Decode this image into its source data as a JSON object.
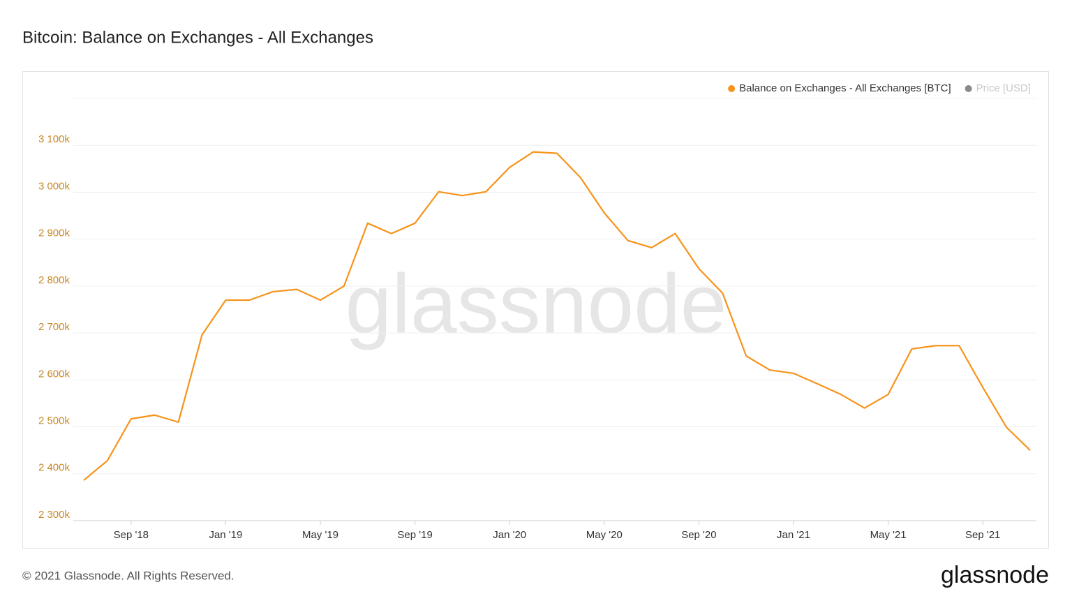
{
  "chart_data": {
    "type": "line",
    "title": "Bitcoin: Balance on Exchanges - All Exchanges",
    "watermark": "glassnode",
    "footer": "© 2021 Glassnode. All Rights Reserved.",
    "brand": "glassnode",
    "x": [
      "2018-07",
      "2018-08",
      "2018-09",
      "2018-10",
      "2018-11",
      "2018-12",
      "2019-01",
      "2019-02",
      "2019-03",
      "2019-04",
      "2019-05",
      "2019-06",
      "2019-07",
      "2019-08",
      "2019-09",
      "2019-10",
      "2019-11",
      "2019-12",
      "2020-01",
      "2020-02",
      "2020-03",
      "2020-04",
      "2020-05",
      "2020-06",
      "2020-07",
      "2020-08",
      "2020-09",
      "2020-10",
      "2020-11",
      "2020-12",
      "2021-01",
      "2021-02",
      "2021-03",
      "2021-04",
      "2021-05",
      "2021-06",
      "2021-07",
      "2021-08",
      "2021-09",
      "2021-10",
      "2021-11"
    ],
    "xlim": [
      "2018-07",
      "2021-11"
    ],
    "xticks": [
      {
        "value": "2018-09",
        "label": "Sep '18"
      },
      {
        "value": "2019-01",
        "label": "Jan '19"
      },
      {
        "value": "2019-05",
        "label": "May '19"
      },
      {
        "value": "2019-09",
        "label": "Sep '19"
      },
      {
        "value": "2020-01",
        "label": "Jan '20"
      },
      {
        "value": "2020-05",
        "label": "May '20"
      },
      {
        "value": "2020-09",
        "label": "Sep '20"
      },
      {
        "value": "2021-01",
        "label": "Jan '21"
      },
      {
        "value": "2021-05",
        "label": "May '21"
      },
      {
        "value": "2021-09",
        "label": "Sep '21"
      }
    ],
    "ylim": [
      2300000,
      3200000
    ],
    "yticks": [
      {
        "value": 2300000,
        "label": "2 300k"
      },
      {
        "value": 2400000,
        "label": "2 400k"
      },
      {
        "value": 2500000,
        "label": "2 500k"
      },
      {
        "value": 2600000,
        "label": "2 600k"
      },
      {
        "value": 2700000,
        "label": "2 700k"
      },
      {
        "value": 2800000,
        "label": "2 800k"
      },
      {
        "value": 2900000,
        "label": "2 900k"
      },
      {
        "value": 3000000,
        "label": "3 000k"
      },
      {
        "value": 3100000,
        "label": "3 100k"
      }
    ],
    "grid": true,
    "series": [
      {
        "name": "Balance on Exchanges - All Exchanges [BTC]",
        "color": "#f7931a",
        "values": [
          2386000,
          2428000,
          2517000,
          2525000,
          2510000,
          2696000,
          2770000,
          2770000,
          2788000,
          2793000,
          2770000,
          2800000,
          2934000,
          2912000,
          2934000,
          3001000,
          2993000,
          3001000,
          3053000,
          3086000,
          3083000,
          3031000,
          2956000,
          2897000,
          2882000,
          2912000,
          2837000,
          2785000,
          2651000,
          2621000,
          2614000,
          2592000,
          2569000,
          2540000,
          2569000,
          2666000,
          2673000,
          2673000,
          2584000,
          2499000,
          2450000
        ]
      }
    ],
    "inactive_legend": {
      "name": "Price [USD]",
      "color": "#8a8a8a"
    }
  }
}
